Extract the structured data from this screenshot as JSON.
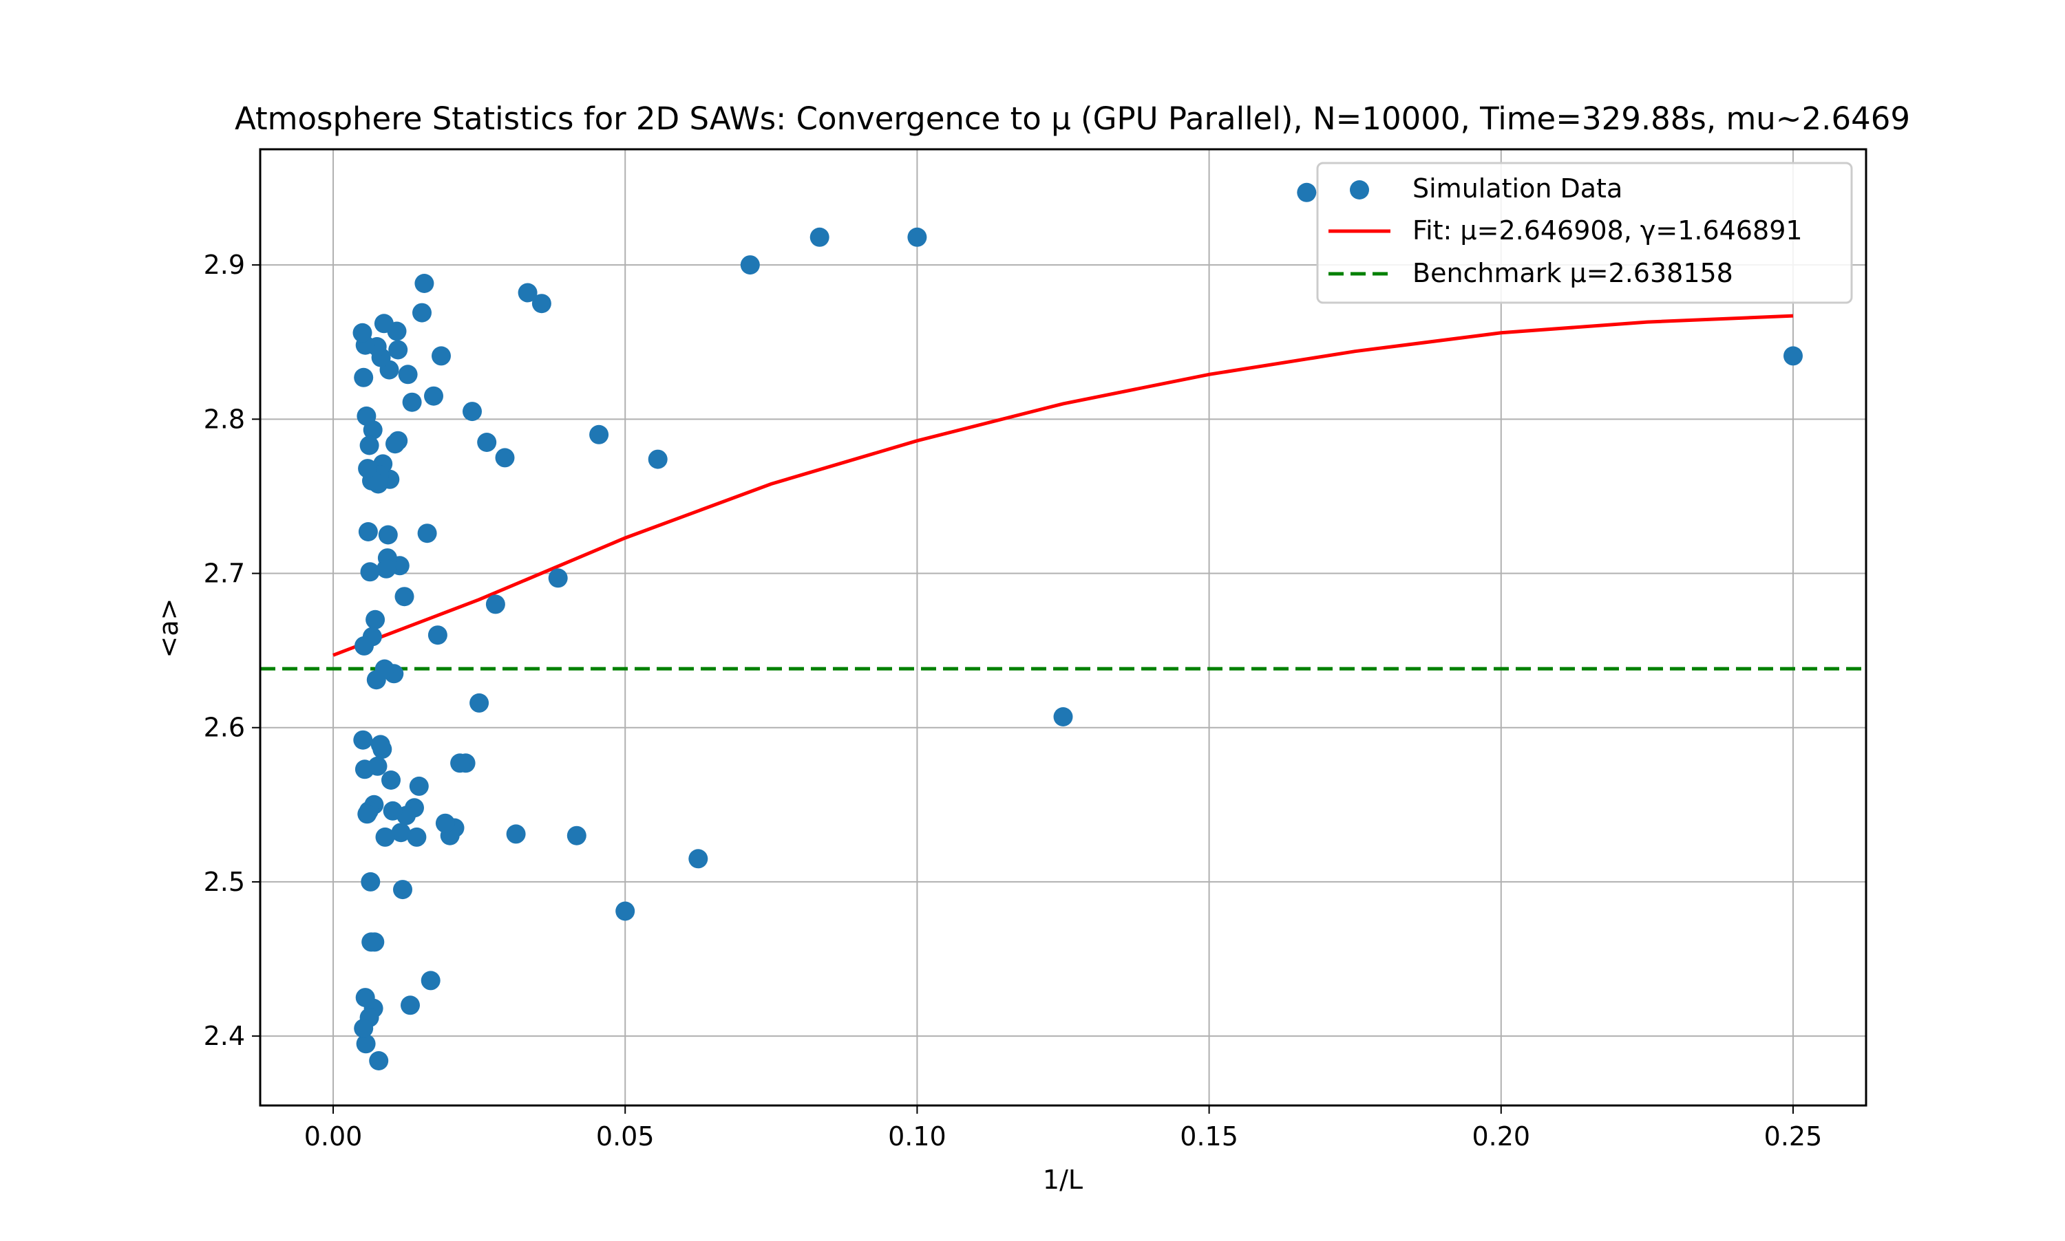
{
  "chart_data": {
    "type": "scatter",
    "title": "Atmosphere Statistics for 2D SAWs: Convergence to μ (GPU Parallel), N=10000, Time=329.88s, mu~2.6469",
    "xlabel": "1/L",
    "ylabel": "<a>",
    "xlim": [
      -0.0125,
      0.2625
    ],
    "ylim": [
      2.355,
      2.975
    ],
    "xticks": [
      0.0,
      0.05,
      0.1,
      0.15,
      0.2,
      0.25
    ],
    "xtick_labels": [
      "0.00",
      "0.05",
      "0.10",
      "0.15",
      "0.20",
      "0.25"
    ],
    "yticks": [
      2.4,
      2.5,
      2.6,
      2.7,
      2.8,
      2.9
    ],
    "ytick_labels": [
      "2.4",
      "2.5",
      "2.6",
      "2.7",
      "2.8",
      "2.9"
    ],
    "grid": true,
    "legend_position": "top-right",
    "series": [
      {
        "name": "Simulation Data",
        "kind": "scatter",
        "color": "#1f77b4",
        "points": [
          [
            0.25,
            2.841
          ],
          [
            0.1667,
            2.947
          ],
          [
            0.125,
            2.607
          ],
          [
            0.1,
            2.918
          ],
          [
            0.0833,
            2.918
          ],
          [
            0.0714,
            2.9
          ],
          [
            0.0625,
            2.515
          ],
          [
            0.0556,
            2.774
          ],
          [
            0.05,
            2.481
          ],
          [
            0.0455,
            2.79
          ],
          [
            0.0417,
            2.53
          ],
          [
            0.0385,
            2.697
          ],
          [
            0.0357,
            2.875
          ],
          [
            0.0333,
            2.882
          ],
          [
            0.0313,
            2.531
          ],
          [
            0.0294,
            2.775
          ],
          [
            0.0278,
            2.68
          ],
          [
            0.0263,
            2.785
          ],
          [
            0.025,
            2.616
          ],
          [
            0.0238,
            2.805
          ],
          [
            0.0227,
            2.577
          ],
          [
            0.0217,
            2.577
          ],
          [
            0.0208,
            2.535
          ],
          [
            0.02,
            2.53
          ],
          [
            0.0192,
            2.538
          ],
          [
            0.0185,
            2.841
          ],
          [
            0.0179,
            2.66
          ],
          [
            0.0172,
            2.815
          ],
          [
            0.0167,
            2.436
          ],
          [
            0.0161,
            2.726
          ],
          [
            0.0156,
            2.888
          ],
          [
            0.0152,
            2.869
          ],
          [
            0.0147,
            2.562
          ],
          [
            0.0143,
            2.529
          ],
          [
            0.0139,
            2.548
          ],
          [
            0.0135,
            2.811
          ],
          [
            0.0132,
            2.42
          ],
          [
            0.0128,
            2.829
          ],
          [
            0.0125,
            2.543
          ],
          [
            0.0122,
            2.685
          ],
          [
            0.0119,
            2.495
          ],
          [
            0.0116,
            2.532
          ],
          [
            0.0114,
            2.705
          ],
          [
            0.0111,
            2.786
          ],
          [
            0.0111,
            2.845
          ],
          [
            0.0109,
            2.857
          ],
          [
            0.0106,
            2.784
          ],
          [
            0.0104,
            2.635
          ],
          [
            0.0102,
            2.546
          ],
          [
            0.0099,
            2.566
          ],
          [
            0.0097,
            2.761
          ],
          [
            0.0096,
            2.832
          ],
          [
            0.0094,
            2.725
          ],
          [
            0.0093,
            2.71
          ],
          [
            0.0091,
            2.703
          ],
          [
            0.0089,
            2.529
          ],
          [
            0.0088,
            2.638
          ],
          [
            0.0087,
            2.862
          ],
          [
            0.0085,
            2.771
          ],
          [
            0.0084,
            2.586
          ],
          [
            0.0082,
            2.84
          ],
          [
            0.0081,
            2.589
          ],
          [
            0.0079,
            2.764
          ],
          [
            0.0078,
            2.384
          ],
          [
            0.0077,
            2.758
          ],
          [
            0.0076,
            2.575
          ],
          [
            0.0075,
            2.847
          ],
          [
            0.0074,
            2.631
          ],
          [
            0.0072,
            2.67
          ],
          [
            0.0071,
            2.461
          ],
          [
            0.007,
            2.55
          ],
          [
            0.0069,
            2.418
          ],
          [
            0.0068,
            2.793
          ],
          [
            0.0067,
            2.659
          ],
          [
            0.0066,
            2.76
          ],
          [
            0.0065,
            2.461
          ],
          [
            0.0064,
            2.5
          ],
          [
            0.0063,
            2.701
          ],
          [
            0.0062,
            2.412
          ],
          [
            0.0062,
            2.783
          ],
          [
            0.0061,
            2.546
          ],
          [
            0.006,
            2.727
          ],
          [
            0.0059,
            2.768
          ],
          [
            0.0058,
            2.544
          ],
          [
            0.0057,
            2.802
          ],
          [
            0.0056,
            2.395
          ],
          [
            0.0055,
            2.848
          ],
          [
            0.0055,
            2.425
          ],
          [
            0.0054,
            2.573
          ],
          [
            0.0053,
            2.653
          ],
          [
            0.0052,
            2.405
          ],
          [
            0.0052,
            2.827
          ],
          [
            0.0051,
            2.592
          ],
          [
            0.005,
            2.856
          ]
        ]
      },
      {
        "name": "Fit: μ=2.646908, γ=1.646891",
        "kind": "line",
        "color": "#ff0000",
        "x_range": [
          0.0,
          0.25
        ],
        "curve": [
          [
            0.0,
            2.647
          ],
          [
            0.025,
            2.683
          ],
          [
            0.05,
            2.723
          ],
          [
            0.075,
            2.758
          ],
          [
            0.1,
            2.786
          ],
          [
            0.125,
            2.81
          ],
          [
            0.15,
            2.829
          ],
          [
            0.175,
            2.844
          ],
          [
            0.2,
            2.856
          ],
          [
            0.225,
            2.863
          ],
          [
            0.25,
            2.867
          ]
        ]
      },
      {
        "name": "Benchmark μ=2.638158",
        "kind": "hline",
        "color": "#008000",
        "y": 2.638158
      }
    ]
  }
}
